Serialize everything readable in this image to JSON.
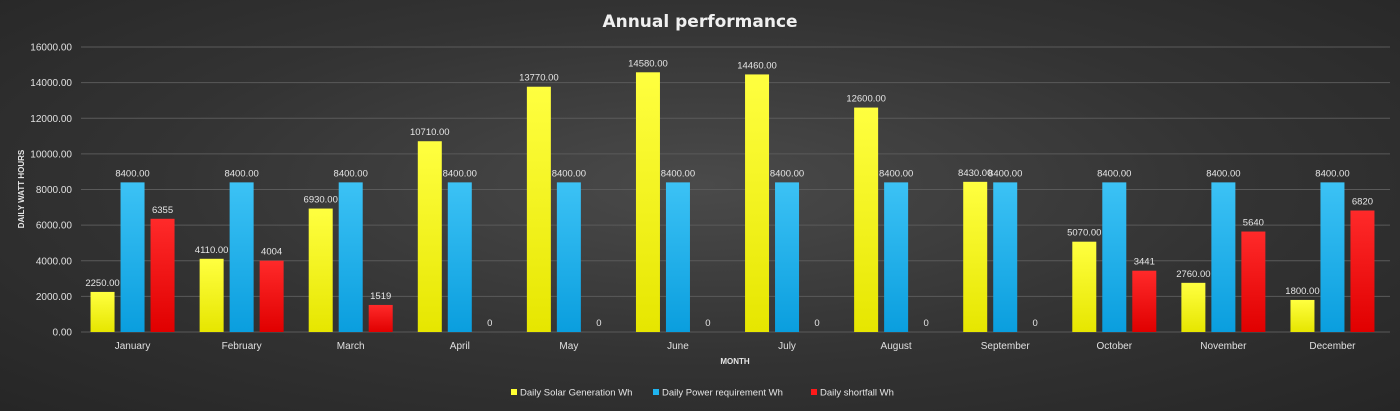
{
  "chart_data": {
    "type": "bar",
    "title": "Annual performance",
    "xlabel": "MONTH",
    "ylabel": "DAILY WATT  HOURS",
    "ylim": [
      0,
      16000
    ],
    "yticks": [
      "0.00",
      "2000.00",
      "4000.00",
      "6000.00",
      "8000.00",
      "10000.00",
      "12000.00",
      "14000.00",
      "16000.00"
    ],
    "ytick_values": [
      0,
      2000,
      4000,
      6000,
      8000,
      10000,
      12000,
      14000,
      16000
    ],
    "grid": true,
    "legend_position": "bottom",
    "categories": [
      "January",
      "February",
      "March",
      "April",
      "May",
      "June",
      "July",
      "August",
      "September",
      "October",
      "November",
      "December"
    ],
    "series": [
      {
        "name": "Daily Solar Generation Wh",
        "color": "#ffff33",
        "values": [
          2250,
          4110,
          6930,
          10710,
          13770,
          14580,
          14460,
          12600,
          8430,
          5070,
          2760,
          1800
        ],
        "labels": [
          "2250.00",
          "4110.00",
          "6930.00",
          "10710.00",
          "13770.00",
          "14580.00",
          "14460.00",
          "12600.00",
          "8430.00",
          "5070.00",
          "2760.00",
          "1800.00"
        ]
      },
      {
        "name": "Daily Power requirement Wh",
        "color": "#1fb4f0",
        "values": [
          8400,
          8400,
          8400,
          8400,
          8400,
          8400,
          8400,
          8400,
          8400,
          8400,
          8400,
          8400
        ],
        "labels": [
          "8400.00",
          "8400.00",
          "8400.00",
          "8400.00",
          "8400.00",
          "8400.00",
          "8400.00",
          "8400.00",
          "8400.00",
          "8400.00",
          "8400.00",
          "8400.00"
        ]
      },
      {
        "name": "Daily shortfall Wh",
        "color": "#ff1a1a",
        "values": [
          6355,
          4004,
          1519,
          0,
          0,
          0,
          0,
          0,
          0,
          3441,
          5640,
          6820
        ],
        "labels": [
          "6355",
          "4004",
          "1519",
          "0",
          "0",
          "0",
          "0",
          "0",
          "0",
          "3441",
          "5640",
          "6820"
        ]
      }
    ]
  }
}
